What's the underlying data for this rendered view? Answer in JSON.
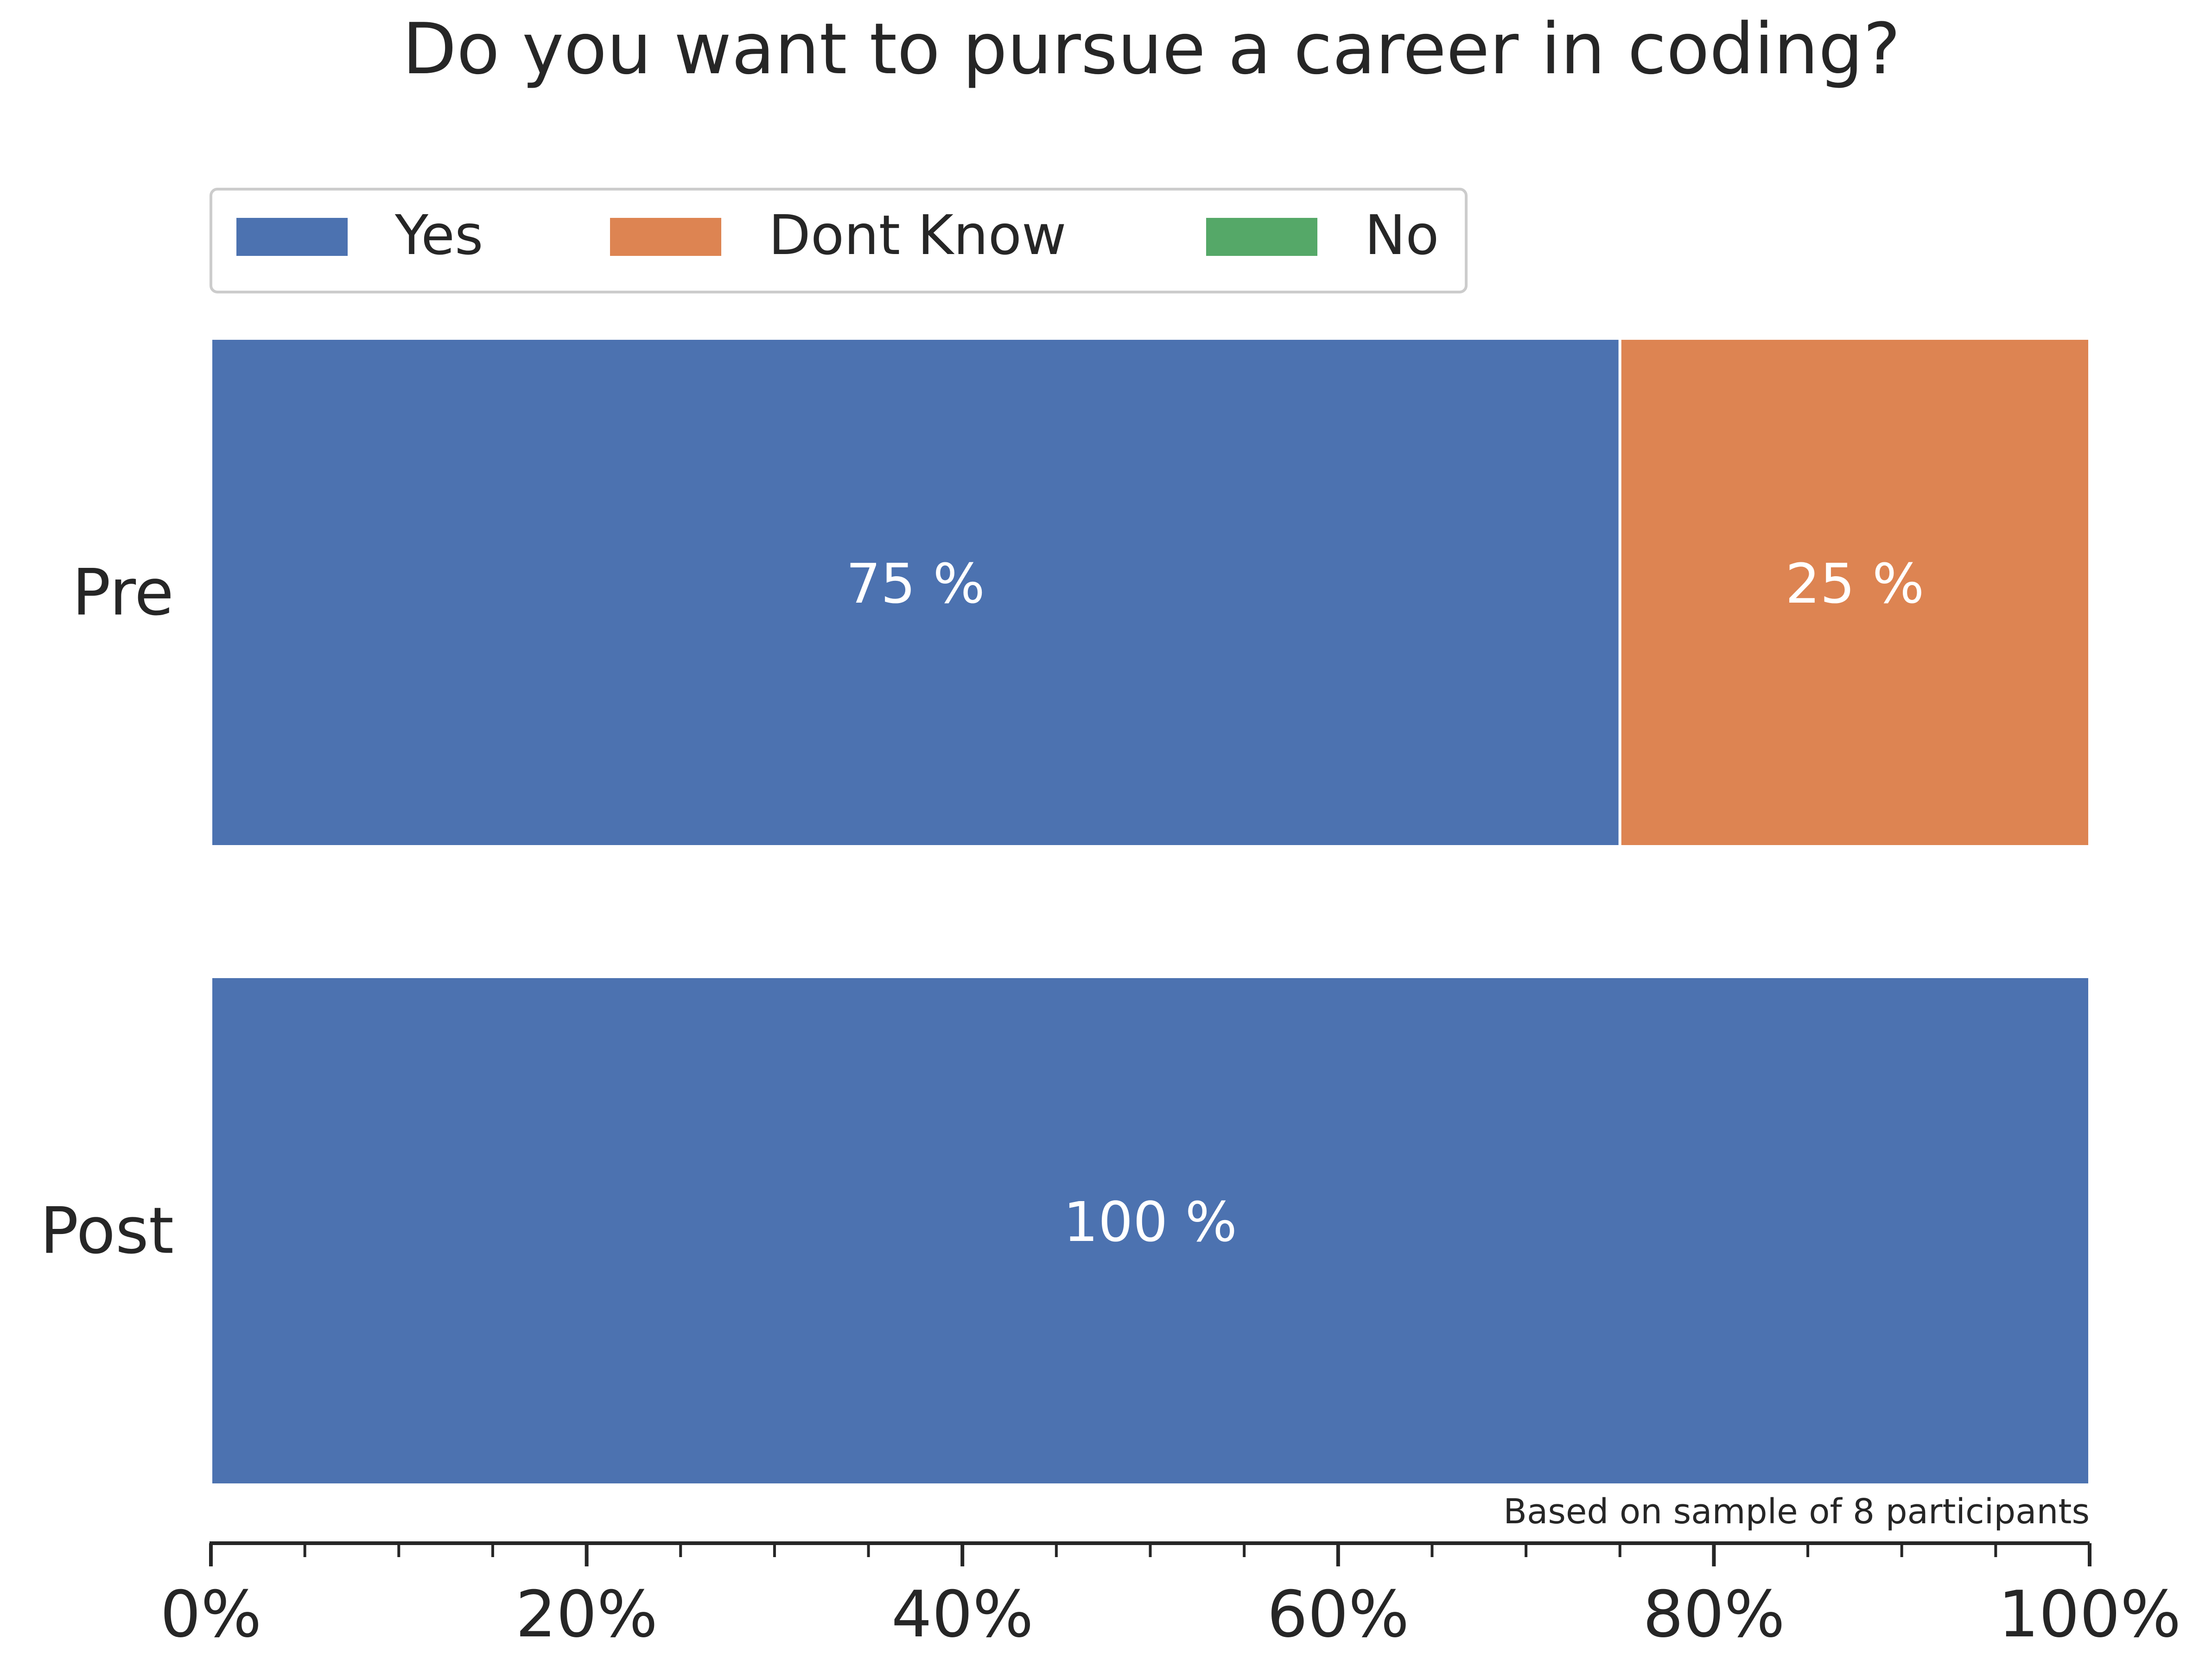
{
  "chart_data": {
    "type": "bar",
    "orientation": "horizontal",
    "stacked": true,
    "title": "Do you want to pursue a career in coding?",
    "categories": [
      "Pre",
      "Post"
    ],
    "series": [
      {
        "name": "Yes",
        "color": "#4c72b0",
        "values": [
          75,
          100
        ]
      },
      {
        "name": "Dont Know",
        "color": "#dd8452",
        "values": [
          25,
          0
        ]
      },
      {
        "name": "No",
        "color": "#55a868",
        "values": [
          0,
          0
        ]
      }
    ],
    "data_labels": [
      {
        "category": "Pre",
        "series": "Yes",
        "text": "75 %"
      },
      {
        "category": "Pre",
        "series": "Dont Know",
        "text": "25 %"
      },
      {
        "category": "Post",
        "series": "Yes",
        "text": "100 %"
      }
    ],
    "xlim": [
      0,
      100
    ],
    "x_ticks": [
      0,
      20,
      40,
      60,
      80,
      100
    ],
    "x_tick_labels": [
      "0%",
      "20%",
      "40%",
      "60%",
      "80%",
      "100%"
    ],
    "x_minor_step": 5,
    "xlabel": "",
    "ylabel": "",
    "legend_position": "top-left",
    "grid": false,
    "note": "Based on sample of 8 participants"
  }
}
